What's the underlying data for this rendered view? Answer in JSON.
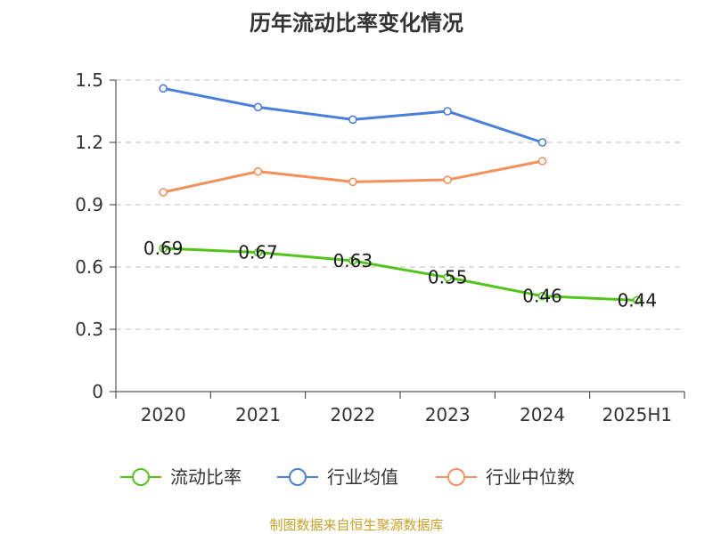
{
  "chart_data": {
    "type": "line",
    "title": "历年流动比率变化情况",
    "categories": [
      "2020",
      "2021",
      "2022",
      "2023",
      "2024",
      "2025H1"
    ],
    "y_ticks": [
      "0",
      "0.3",
      "0.6",
      "0.9",
      "1.2",
      "1.5"
    ],
    "ylim": [
      0,
      1.5
    ],
    "grid": true,
    "legend_position": "bottom",
    "series": [
      {
        "name": "流动比率",
        "color": "#52c41a",
        "values": [
          0.69,
          0.67,
          0.63,
          0.55,
          0.46,
          0.44
        ],
        "labels": [
          "0.69",
          "0.67",
          "0.63",
          "0.55",
          "0.46",
          "0.44"
        ]
      },
      {
        "name": "行业均值",
        "color": "#4a7fdc",
        "values": [
          1.46,
          1.37,
          1.31,
          1.35,
          1.2,
          null
        ]
      },
      {
        "name": "行业中位数",
        "color": "#f5905a",
        "values": [
          0.96,
          1.06,
          1.01,
          1.02,
          1.11,
          null
        ]
      }
    ]
  },
  "source": {
    "text": "制图数据来自恒生聚源数据库",
    "color": "#c9a227"
  }
}
